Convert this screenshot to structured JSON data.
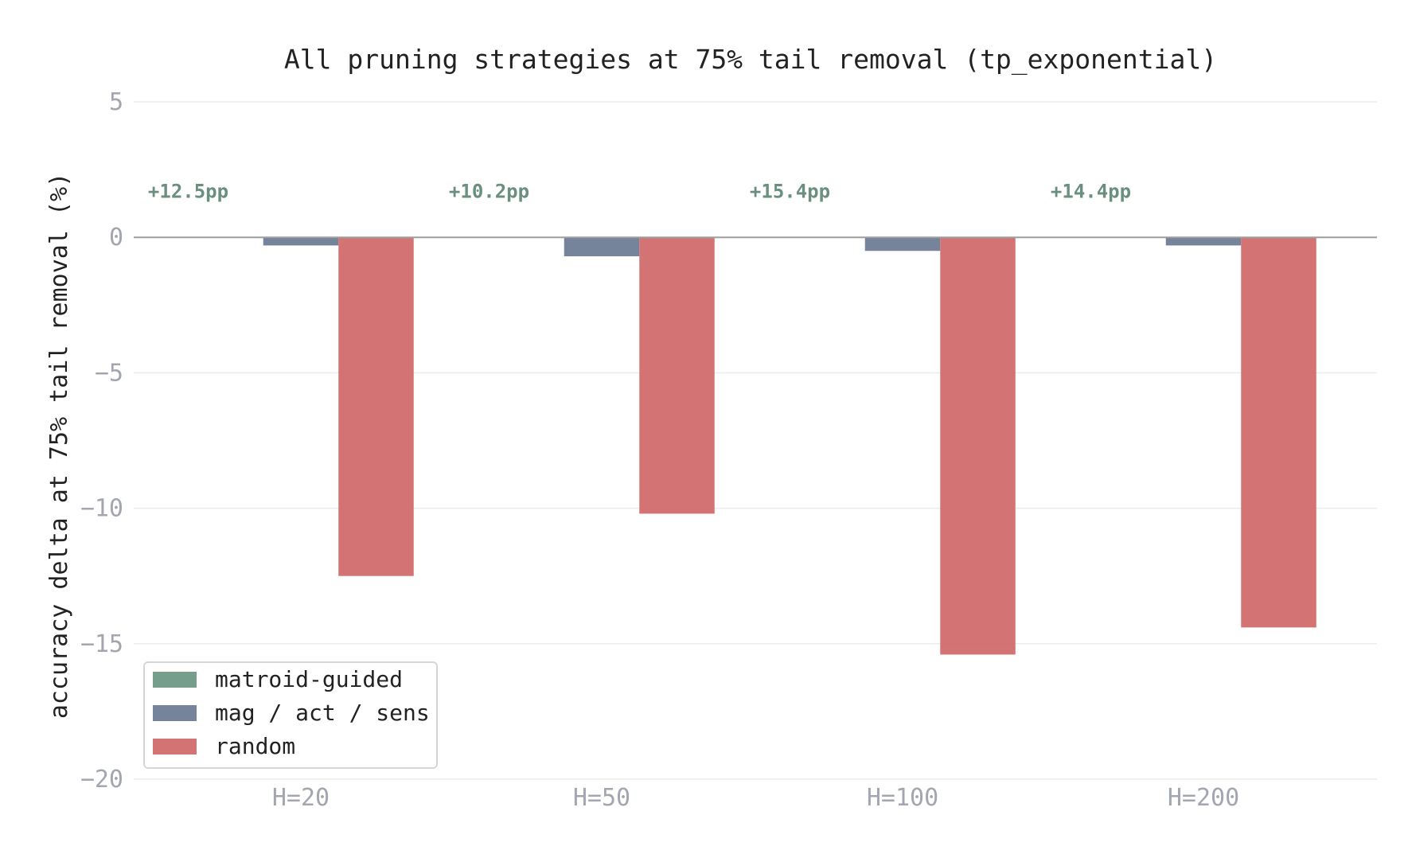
{
  "chart_data": {
    "type": "bar",
    "title": "All pruning strategies at 75% tail removal (tp_exponential)",
    "xlabel": "",
    "ylabel": "accuracy delta at 75% tail removal (%)",
    "ylim": [
      -20,
      5
    ],
    "yticks": [
      5,
      0,
      -5,
      -10,
      -15,
      -20
    ],
    "ytick_labels": [
      "5",
      "0",
      "−5",
      "−10",
      "−15",
      "−20"
    ],
    "grid": true,
    "legend_position": "lower-left",
    "categories": [
      "H=20",
      "H=50",
      "H=100",
      "H=200"
    ],
    "series": [
      {
        "name": "matroid-guided",
        "color": "#6f9986",
        "values": [
          0,
          0,
          0,
          0
        ]
      },
      {
        "name": "mag / act / sens",
        "color": "#6f7d96",
        "values": [
          -0.3,
          -0.7,
          -0.5,
          -0.3
        ]
      },
      {
        "name": "random",
        "color": "#d16b6b",
        "values": [
          -12.5,
          -10.2,
          -15.4,
          -14.4
        ]
      }
    ],
    "annotations": [
      "+12.5pp",
      "+10.2pp",
      "+15.4pp",
      "+14.4pp"
    ],
    "annotation_value": 1.7,
    "annotation_color": "#6a8f7e"
  }
}
